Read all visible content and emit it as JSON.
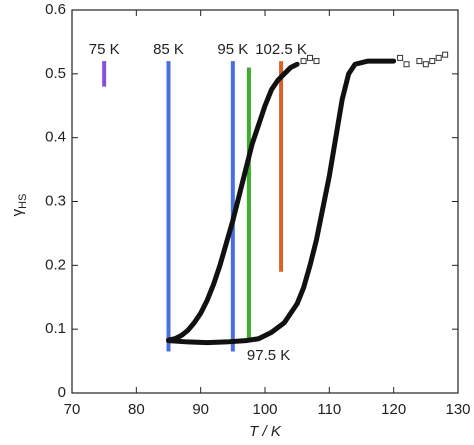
{
  "chart_data": {
    "type": "scatter",
    "x_label": "T / K",
    "y_label": "γ",
    "y_label_sub": "HS",
    "xlim": [
      70,
      130
    ],
    "xticks": [
      70,
      80,
      90,
      100,
      110,
      120,
      130
    ],
    "ylim": [
      0,
      0.6
    ],
    "yticks": [
      0,
      0.1,
      0.2,
      0.3,
      0.4,
      0.5,
      0.6
    ],
    "series": [
      {
        "color": "#111111",
        "style": "line",
        "x": [
          85,
          86,
          87,
          88,
          89,
          90,
          91,
          92,
          93,
          94,
          95,
          96,
          97,
          98,
          99,
          100,
          101,
          102,
          103,
          104,
          105
        ],
        "values": [
          0.083,
          0.085,
          0.09,
          0.098,
          0.11,
          0.125,
          0.145,
          0.17,
          0.2,
          0.235,
          0.27,
          0.31,
          0.35,
          0.39,
          0.42,
          0.45,
          0.475,
          0.49,
          0.5,
          0.51,
          0.515
        ]
      },
      {
        "color": "#111111",
        "style": "line",
        "x": [
          85,
          88,
          91,
          94,
          97,
          99,
          101,
          103,
          105,
          106,
          107,
          108,
          109,
          110,
          111,
          112,
          113,
          114,
          116,
          118,
          120
        ],
        "values": [
          0.082,
          0.08,
          0.079,
          0.08,
          0.082,
          0.085,
          0.095,
          0.11,
          0.14,
          0.165,
          0.2,
          0.24,
          0.29,
          0.34,
          0.4,
          0.46,
          0.5,
          0.515,
          0.52,
          0.52,
          0.52
        ]
      },
      {
        "color": "#333333",
        "style": "markers",
        "x": [
          106,
          107,
          108,
          121,
          122,
          124,
          125,
          126,
          127,
          128
        ],
        "values": [
          0.52,
          0.525,
          0.52,
          0.525,
          0.515,
          0.52,
          0.515,
          0.52,
          0.525,
          0.53
        ]
      }
    ],
    "annotations": [
      {
        "label": "75 K",
        "x": 75,
        "ymin": 0.48,
        "ymax": 0.52,
        "color": "#8a4fd8",
        "label_position": "above"
      },
      {
        "label": "85 K",
        "x": 85,
        "ymin": 0.065,
        "ymax": 0.52,
        "color": "#4a6de0",
        "label_position": "above"
      },
      {
        "label": "95 K",
        "x": 95,
        "ymin": 0.065,
        "ymax": 0.52,
        "color": "#4a6de0",
        "label_position": "above"
      },
      {
        "label": "97.5 K",
        "x": 97.5,
        "ymin": 0.08,
        "ymax": 0.51,
        "color": "#3dae2b",
        "label_position": "below"
      },
      {
        "label": "102.5 K",
        "x": 102.5,
        "ymin": 0.19,
        "ymax": 0.52,
        "color": "#d9622b",
        "label_position": "above"
      }
    ]
  }
}
